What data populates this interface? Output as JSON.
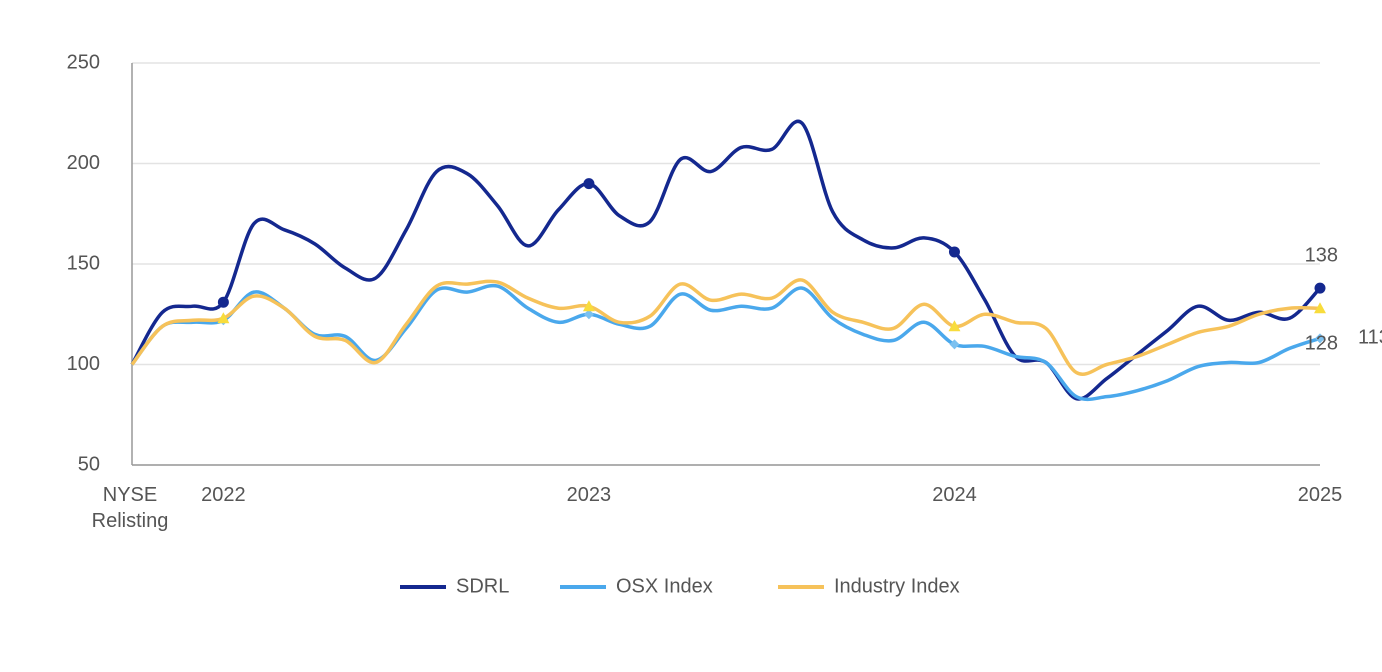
{
  "chart_data": {
    "type": "line",
    "categories": [
      "NYSE Relisting",
      null,
      null,
      "2022",
      null,
      null,
      null,
      null,
      null,
      null,
      null,
      null,
      null,
      null,
      null,
      "2023",
      null,
      null,
      null,
      null,
      null,
      null,
      null,
      null,
      null,
      null,
      null,
      "2024",
      null,
      null,
      null,
      null,
      null,
      null,
      null,
      null,
      null,
      null,
      null,
      "2025"
    ],
    "series": [
      {
        "name": "SDRL",
        "color": "#14288f",
        "marker": "circle",
        "values": [
          100,
          126,
          129,
          131,
          170,
          167,
          160,
          148,
          143,
          167,
          196,
          195,
          179,
          159,
          177,
          190,
          174,
          171,
          202,
          196,
          208,
          207,
          220,
          176,
          162,
          158,
          163,
          156,
          132,
          104,
          101,
          83,
          93,
          105,
          117,
          129,
          122,
          126,
          123,
          138
        ]
      },
      {
        "name": "OSX Index",
        "color": "#4aa8ec",
        "marker": "diamond",
        "values": [
          100,
          119,
          121,
          122,
          136,
          128,
          115,
          114,
          102,
          118,
          137,
          136,
          139,
          128,
          121,
          125,
          120,
          119,
          135,
          127,
          129,
          128,
          138,
          123,
          115,
          112,
          121,
          110,
          109,
          104,
          101,
          84,
          84,
          87,
          92,
          99,
          101,
          101,
          108,
          113
        ]
      },
      {
        "name": "Industry Index",
        "color": "#f6c25a",
        "marker": "triangle",
        "values": [
          100,
          119,
          122,
          123,
          134,
          128,
          114,
          112,
          101,
          120,
          139,
          140,
          141,
          133,
          128,
          129,
          121,
          124,
          140,
          132,
          135,
          133,
          142,
          126,
          121,
          118,
          130,
          119,
          125,
          121,
          118,
          96,
          100,
          104,
          110,
          116,
          119,
          125,
          128,
          128
        ]
      }
    ],
    "ylim": [
      50,
      250
    ],
    "yticks": [
      50,
      100,
      150,
      200,
      250
    ],
    "grid": true
  }
}
